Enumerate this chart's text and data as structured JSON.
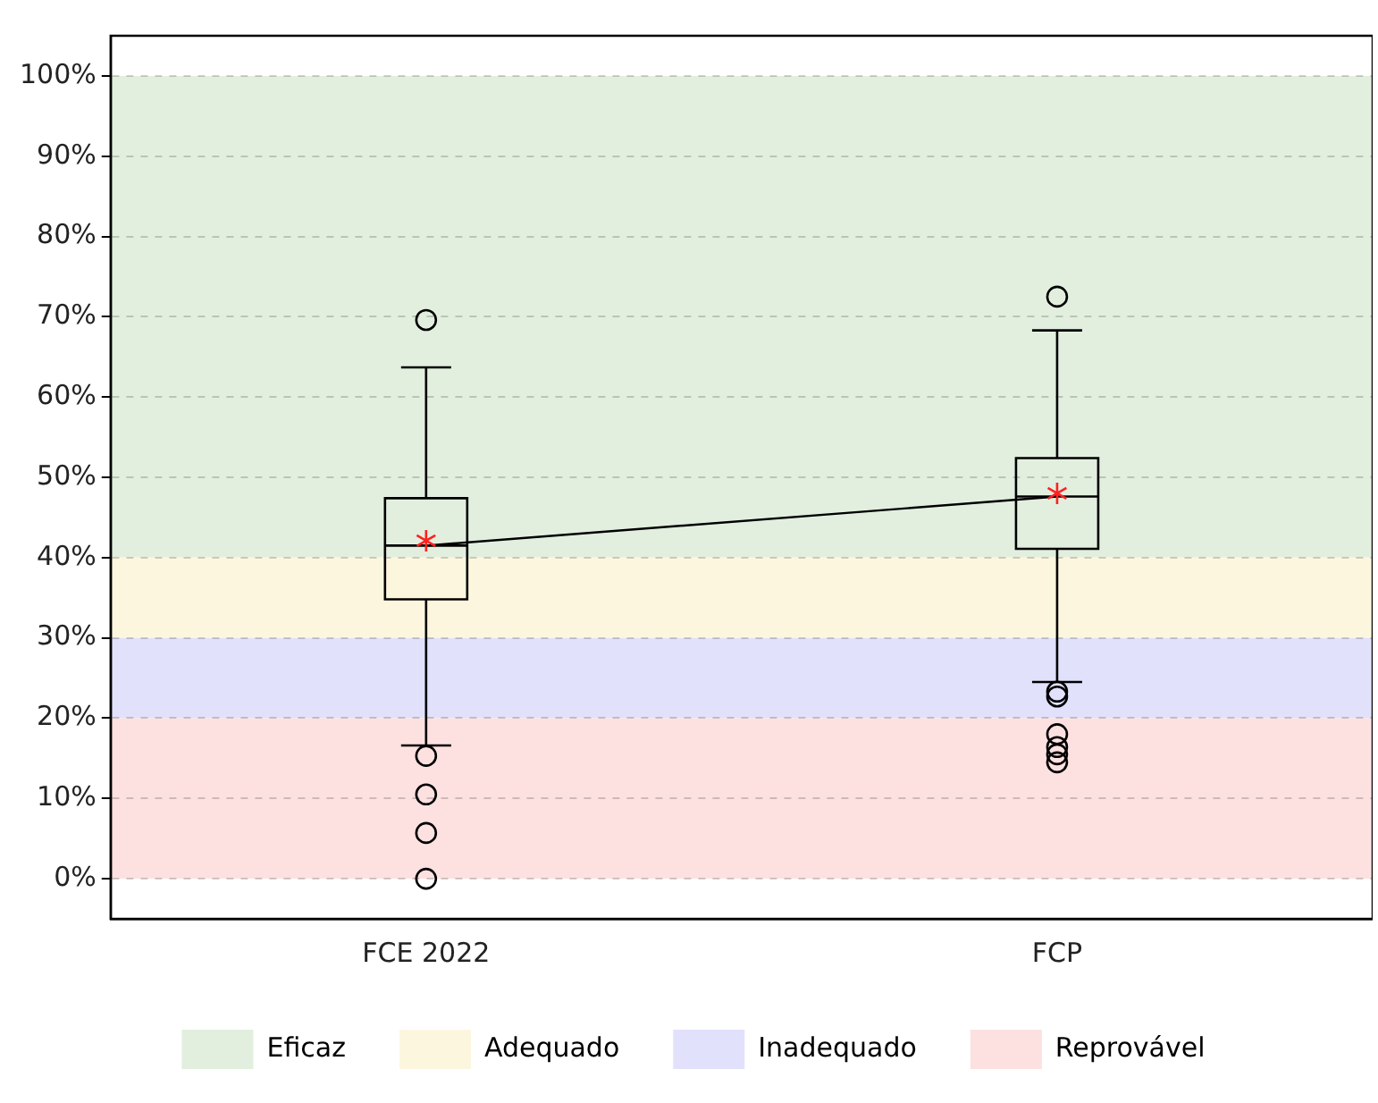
{
  "chart_data": {
    "type": "box",
    "categories": [
      "FCE 2022",
      "FCP"
    ],
    "series": [
      {
        "type": "box",
        "color": "#000000",
        "boxes": [
          {
            "low": 16.6,
            "q1": 34.8,
            "median": 41.5,
            "q3": 47.4,
            "high": 63.7,
            "mean": 42.1,
            "outliers": [
              69.6,
              15.3,
              10.5,
              5.7,
              0
            ]
          },
          {
            "low": 24.5,
            "q1": 41.1,
            "median": 47.6,
            "q3": 52.4,
            "high": 68.3,
            "mean": 48,
            "outliers": [
              72.5,
              23.3,
              22.7,
              18,
              16.4,
              15.5,
              14.5
            ]
          }
        ]
      },
      {
        "type": "line",
        "color": "#000000",
        "x": [
          "FCE 2022",
          "FCP"
        ],
        "values": [
          41.5,
          47.6
        ]
      }
    ],
    "ylim": [
      -5,
      105
    ],
    "yticks": [
      {
        "value": 0,
        "label": "0%"
      },
      {
        "value": 10,
        "label": "10%"
      },
      {
        "value": 20,
        "label": "20%"
      },
      {
        "value": 30,
        "label": "30%"
      },
      {
        "value": 40,
        "label": "40%"
      },
      {
        "value": 50,
        "label": "50%"
      },
      {
        "value": 60,
        "label": "60%"
      },
      {
        "value": 70,
        "label": "70%"
      },
      {
        "value": 80,
        "label": "80%"
      },
      {
        "value": 90,
        "label": "90%"
      },
      {
        "value": 100,
        "label": "100%"
      }
    ],
    "bands": [
      {
        "axis": "y",
        "from": 40,
        "to": 100,
        "label": "Eficaz",
        "color": "#e2efdf"
      },
      {
        "axis": "y",
        "from": 30,
        "to": 40,
        "label": "Adequado",
        "color": "#fdf6df"
      },
      {
        "axis": "y",
        "from": 20,
        "to": 30,
        "label": "Inadequado",
        "color": "#e1e1fb"
      },
      {
        "axis": "y",
        "from": 0,
        "to": 20,
        "label": "Reprovável",
        "color": "#fde1e1"
      }
    ],
    "grid": "y",
    "legend": "bottom"
  }
}
